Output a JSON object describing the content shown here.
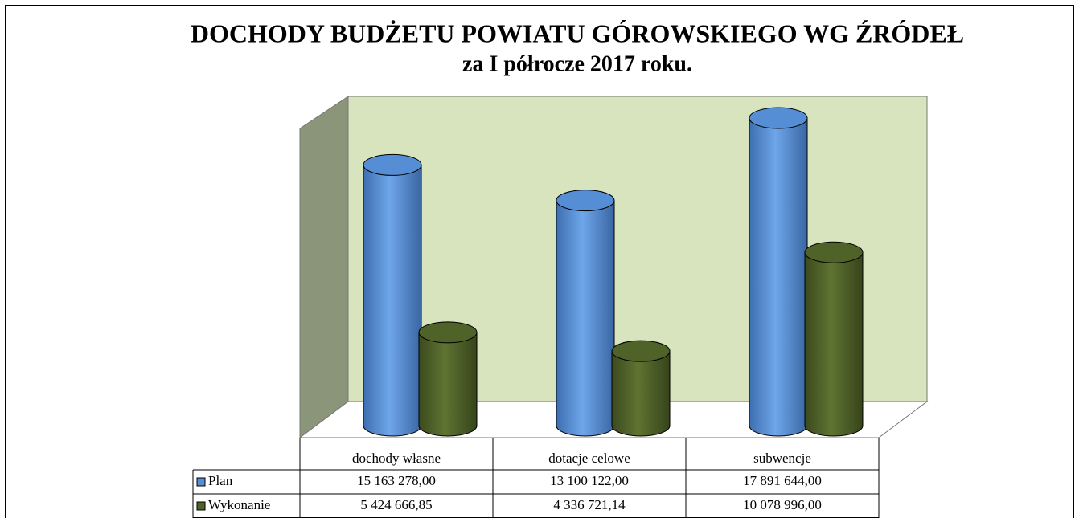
{
  "chart_data": {
    "type": "cylinder-bar",
    "title": "DOCHODY BUDŻETU POWIATU GÓROWSKIEGO WG ŹRÓDEŁ",
    "subtitle": "za I półrocze 2017 roku.",
    "categories": [
      "dochody własne",
      "dotacje celowe",
      "subwencje"
    ],
    "series": [
      {
        "name": "Plan",
        "color": "#558ed5",
        "values": [
          15163278,
          13100122,
          17891644
        ],
        "value_labels": [
          "15 163 278,00",
          "13 100 122,00",
          "17 891 644,00"
        ]
      },
      {
        "name": "Wykonanie",
        "color": "#4f6228",
        "values": [
          5424666.85,
          4336721.14,
          10078996
        ],
        "value_labels": [
          "5 424 666,85",
          "4 336 721,14",
          "10 078 996,00"
        ]
      }
    ]
  }
}
